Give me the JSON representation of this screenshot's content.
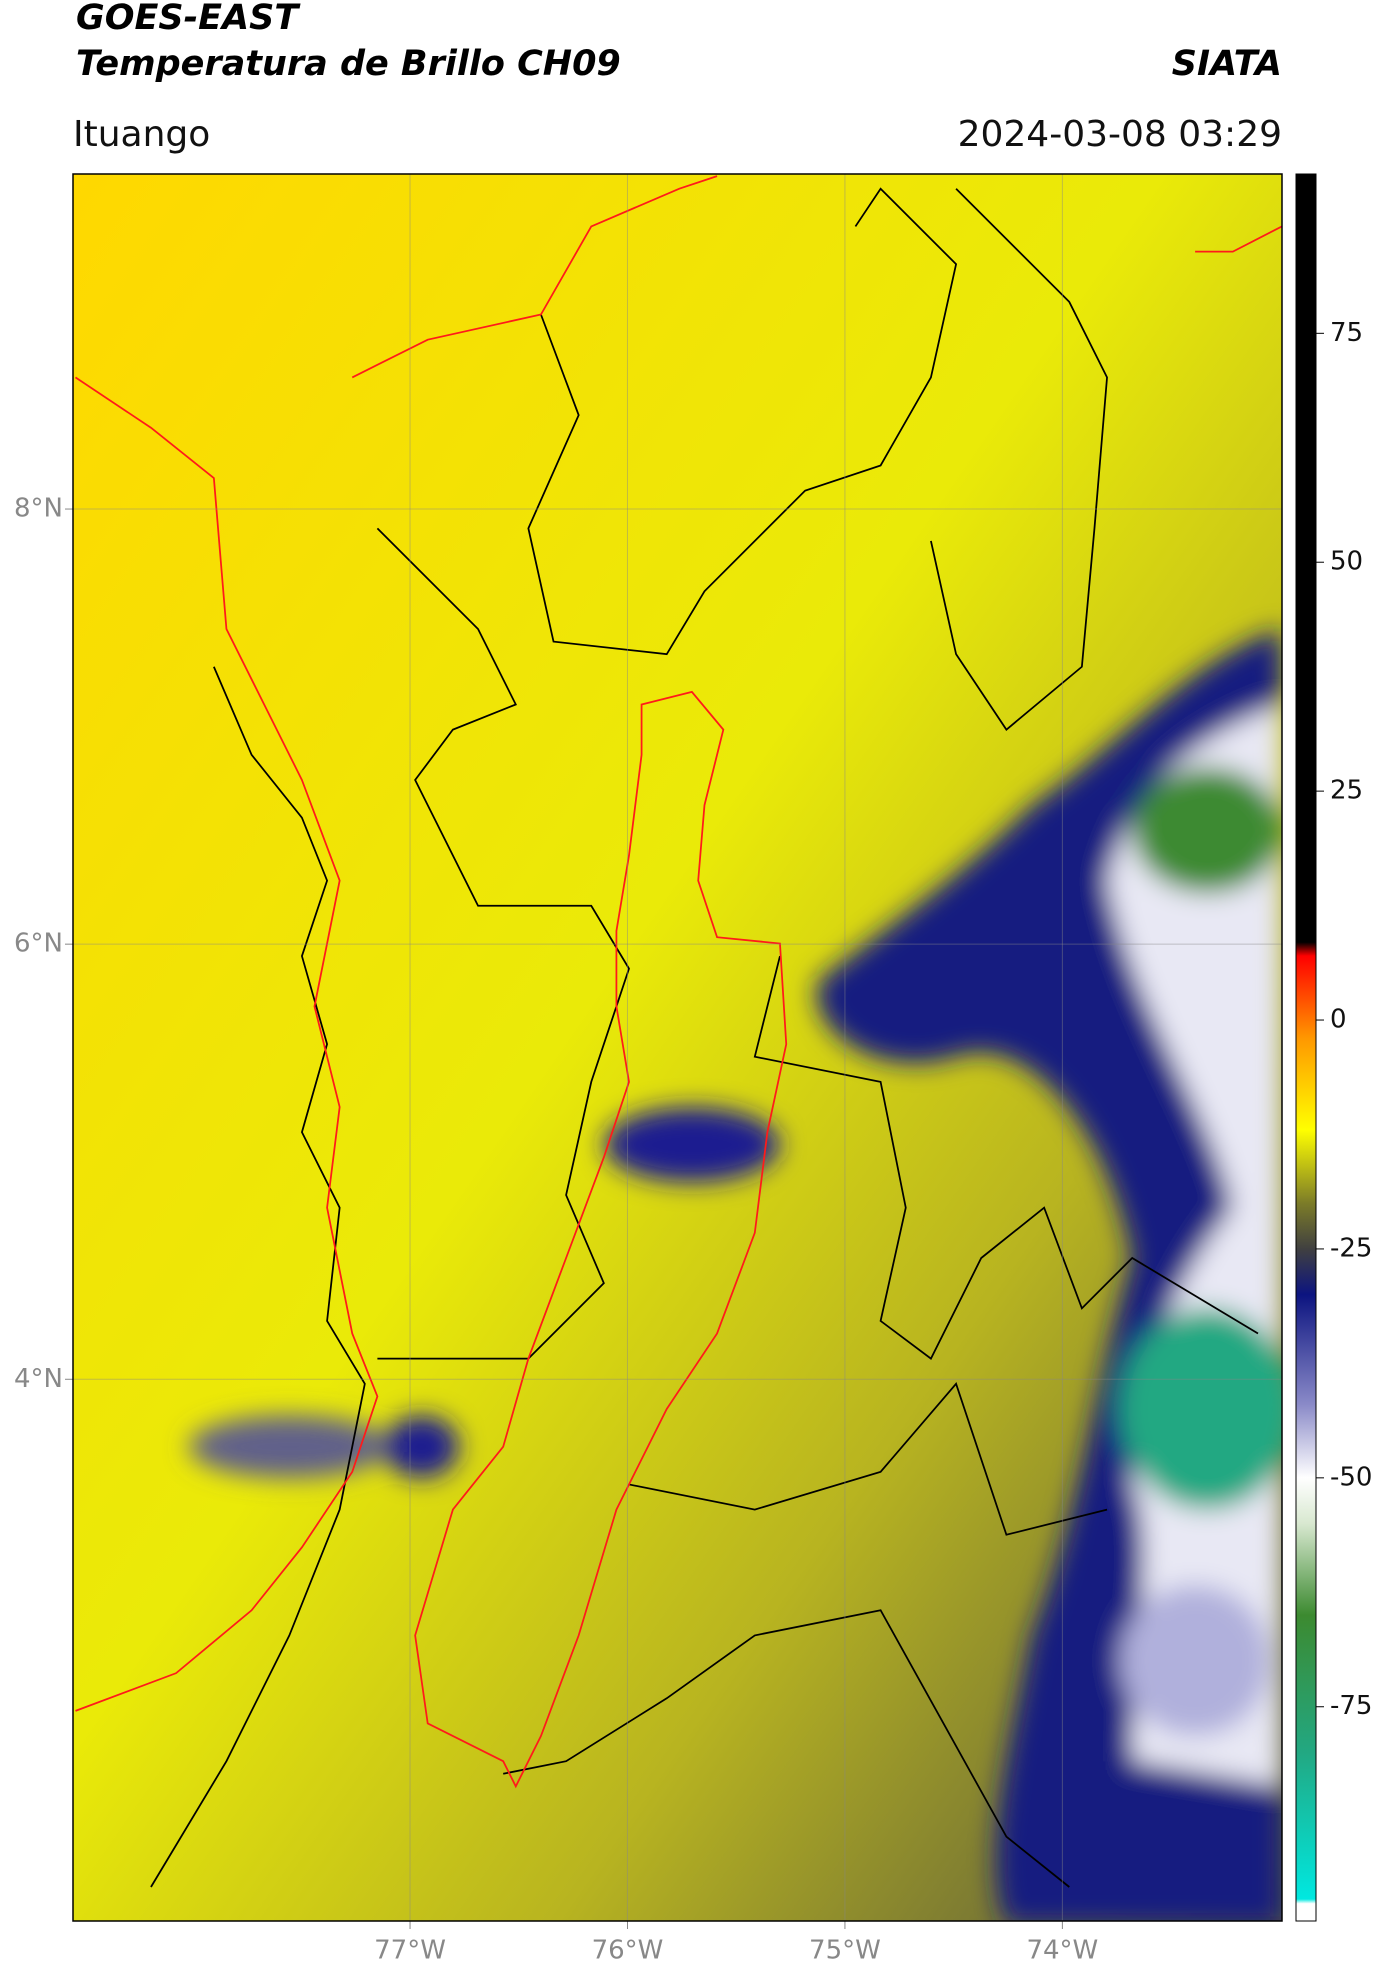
{
  "header": {
    "title": "GOES-EAST",
    "subtitle": "Temperatura de Brillo CH09",
    "brand": "SIATA",
    "region": "Ituango",
    "timestamp": "2024-03-08 03:29"
  },
  "map": {
    "xlim": [
      -78.55,
      -72.99
    ],
    "ylim": [
      1.51,
      9.54
    ],
    "xticks": [
      {
        "value": -77,
        "label": "77°W"
      },
      {
        "value": -76,
        "label": "76°W"
      },
      {
        "value": -75,
        "label": "75°W"
      },
      {
        "value": -74,
        "label": "74°W"
      }
    ],
    "yticks": [
      {
        "value": 4,
        "label": "4°N"
      },
      {
        "value": 6,
        "label": "6°N"
      },
      {
        "value": 8,
        "label": "8°N"
      }
    ],
    "grid": true
  },
  "colorbar": {
    "lim": [
      -98.4,
      92.4
    ],
    "ticks": [
      -75,
      -50,
      -25,
      0,
      25,
      50,
      75
    ],
    "stops": [
      {
        "value": -98.4,
        "color": "#ffffff"
      },
      {
        "value": -96.5,
        "color": "#ffffff"
      },
      {
        "value": -96,
        "color": "#00e8e0"
      },
      {
        "value": -80,
        "color": "#22a882"
      },
      {
        "value": -65,
        "color": "#3c8a30"
      },
      {
        "value": -55,
        "color": "#d8e8d0"
      },
      {
        "value": -50,
        "color": "#ffffff"
      },
      {
        "value": -42,
        "color": "#8a8ac8"
      },
      {
        "value": -30,
        "color": "#0c1480"
      },
      {
        "value": -25,
        "color": "#404040"
      },
      {
        "value": -20,
        "color": "#7c7c28"
      },
      {
        "value": -12,
        "color": "#ffff00"
      },
      {
        "value": -2,
        "color": "#ff9800"
      },
      {
        "value": 7,
        "color": "#ff0000"
      },
      {
        "value": 8.5,
        "color": "#000000"
      },
      {
        "value": 92.4,
        "color": "#000000"
      }
    ]
  }
}
